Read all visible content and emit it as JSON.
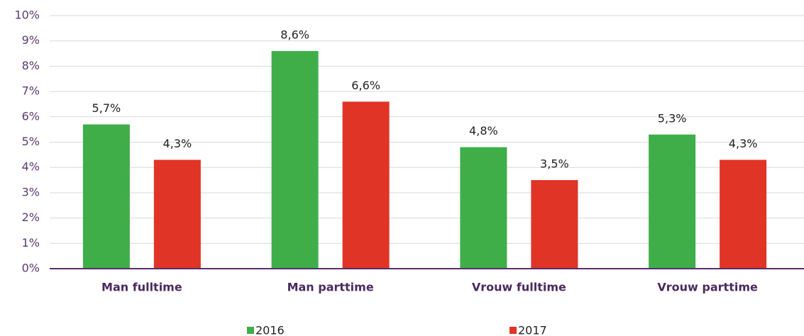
{
  "chart_data": {
    "type": "bar",
    "categories": [
      "Man fulltime",
      "Man parttime",
      "Vrouw fulltime",
      "Vrouw parttime"
    ],
    "series": [
      {
        "name": "2016",
        "color": "#3fae49",
        "values": [
          5.7,
          8.6,
          4.8,
          5.3
        ],
        "value_labels": [
          "5,7%",
          "8,6%",
          "4,8%",
          "5,3%"
        ]
      },
      {
        "name": "2017",
        "color": "#e03426",
        "values": [
          4.3,
          6.6,
          3.5,
          4.3
        ],
        "value_labels": [
          "4,3%",
          "6,6%",
          "3,5%",
          "4,3%"
        ]
      }
    ],
    "ylim": [
      0,
      10
    ],
    "yticks": [
      {
        "value": 0,
        "label": "0%"
      },
      {
        "value": 1,
        "label": "1%"
      },
      {
        "value": 2,
        "label": "2%"
      },
      {
        "value": 3,
        "label": "3%"
      },
      {
        "value": 4,
        "label": "4%"
      },
      {
        "value": 5,
        "label": "5%"
      },
      {
        "value": 6,
        "label": "6%"
      },
      {
        "value": 7,
        "label": "7%"
      },
      {
        "value": 8,
        "label": "8%"
      },
      {
        "value": 9,
        "label": "9%"
      },
      {
        "value": 10,
        "label": "10%"
      }
    ],
    "grid": true,
    "legend": "bottom"
  }
}
